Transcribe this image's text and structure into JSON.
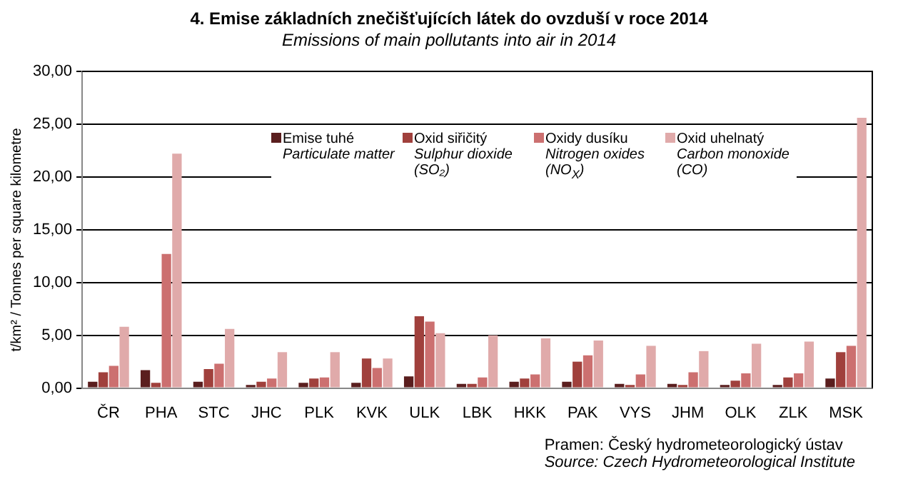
{
  "chart_data": {
    "type": "bar",
    "title": "4. Emise základních znečišťujících látek do ovzduší v roce 2014",
    "subtitle": "Emissions of main pollutants into air in 2014",
    "ylabel": "t/km² / Tonnes per square kilometre",
    "categories": [
      "ČR",
      "PHA",
      "STC",
      "JHC",
      "PLK",
      "KVK",
      "ULK",
      "LBK",
      "HKK",
      "PAK",
      "VYS",
      "JHM",
      "OLK",
      "ZLK",
      "MSK"
    ],
    "series": [
      {
        "name": "Emise tuhé\nParticulate matter",
        "color": "#5a1e1e",
        "values": [
          0.6,
          1.7,
          0.6,
          0.3,
          0.5,
          0.5,
          1.1,
          0.4,
          0.6,
          0.6,
          0.4,
          0.4,
          0.3,
          0.3,
          0.9
        ]
      },
      {
        "name": "Oxid siřičitý\nSulphur dioxide\n(SO₂)",
        "color": "#a0403c",
        "values": [
          1.5,
          0.5,
          1.8,
          0.6,
          0.9,
          2.8,
          6.8,
          0.4,
          0.9,
          2.5,
          0.3,
          0.3,
          0.7,
          1.0,
          3.4
        ]
      },
      {
        "name": "Oxidy dusíku\nNitrogen oxides\n(NO$_{X}$)",
        "color": "#cc7070",
        "values": [
          2.1,
          12.7,
          2.3,
          0.9,
          1.0,
          1.9,
          6.3,
          1.0,
          1.3,
          3.1,
          1.3,
          1.5,
          1.4,
          1.4,
          4.0
        ]
      },
      {
        "name": "Oxid uhelnatý\nCarbon monoxide\n(CO)",
        "color": "#e0aaaa",
        "values": [
          5.8,
          22.2,
          5.6,
          3.4,
          3.4,
          2.8,
          5.2,
          5.0,
          4.7,
          4.5,
          4.0,
          3.5,
          4.2,
          4.4,
          25.6
        ]
      }
    ],
    "ylim": [
      0,
      30
    ],
    "yticks": [
      {
        "value": 0,
        "label": "0,00"
      },
      {
        "value": 5,
        "label": "5,00"
      },
      {
        "value": 10,
        "label": "10,00"
      },
      {
        "value": 15,
        "label": "15,00"
      },
      {
        "value": 20,
        "label": "20,00"
      },
      {
        "value": 25,
        "label": "25,00"
      },
      {
        "value": 30,
        "label": "30,00"
      }
    ],
    "grid": "y",
    "legend": "top",
    "annotations": [
      "Pramen: Český hydrometeorologický ústav",
      "Source: Czech Hydrometeorological Institute"
    ]
  }
}
